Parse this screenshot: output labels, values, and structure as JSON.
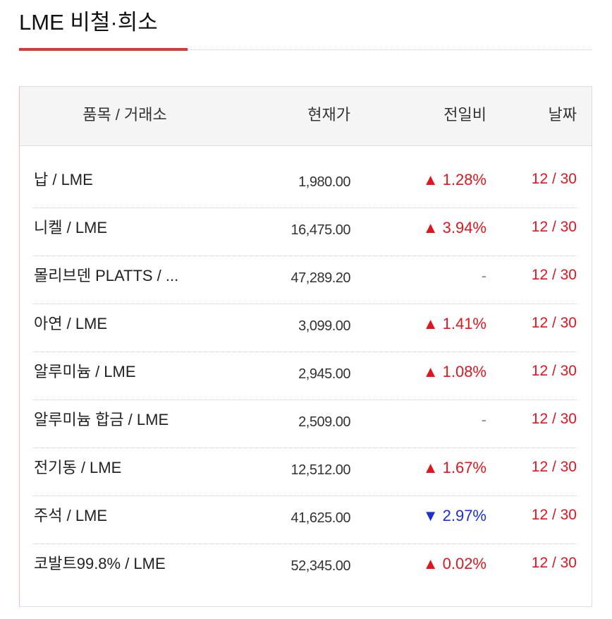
{
  "header": {
    "title": "LME 비철·희소"
  },
  "table": {
    "columns": [
      "품목 / 거래소",
      "현재가",
      "전일비",
      "날짜"
    ],
    "rows": [
      [
        "납 / LME",
        "1,980.00",
        "▲ 1.28%",
        "12 / 30"
      ],
      [
        "니켈 / LME",
        "16,475.00",
        "▲ 3.94%",
        "12 / 30"
      ],
      [
        "몰리브덴 PLATTS / ...",
        "47,289.20",
        "-",
        "12 / 30"
      ],
      [
        "아연 / LME",
        "3,099.00",
        "▲ 1.41%",
        "12 / 30"
      ],
      [
        "알루미늄 / LME",
        "2,945.00",
        "▲ 1.08%",
        "12 / 30"
      ],
      [
        "알루미늄 합금 / LME",
        "2,509.00",
        "-",
        "12 / 30"
      ],
      [
        "전기동 / LME",
        "12,512.00",
        "▲ 1.67%",
        "12 / 30"
      ],
      [
        "주석 / LME",
        "41,625.00",
        "▼ 2.97%",
        "12 / 30"
      ],
      [
        "코발트99.8% / LME",
        "52,345.00",
        "▲ 0.02%",
        "12 / 30"
      ]
    ]
  }
}
